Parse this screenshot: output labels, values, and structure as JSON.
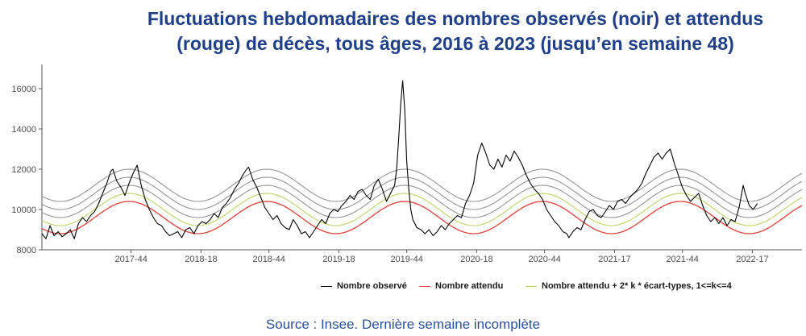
{
  "title": {
    "line1": "Fluctuations hebdomadaires des nombres observés (noir) et attendus",
    "line2": "(rouge) de décès, tous âges, 2016 à 2023 (jusqu’en semaine 48)"
  },
  "source": "Source : Insee. Dernière semaine incomplète",
  "colors": {
    "title": "#1f3f87",
    "observed": "#000000",
    "expected": "#e0413a",
    "band_first": "#b5d25a",
    "bands": "#8c8c8c",
    "source": "#2b4f9a"
  },
  "chart_data": {
    "type": "line",
    "title": "Fluctuations hebdomadaires des nombres observés (noir) et attendus (rouge) de décès, tous âges, 2016 à 2023 (jusqu’en semaine 48)",
    "xlabel": "",
    "ylabel": "",
    "ylim": [
      8000,
      16800
    ],
    "yticks": [
      8000,
      10000,
      12000,
      14000,
      16000
    ],
    "xticks": [
      "2017-44",
      "2018-18",
      "2018-44",
      "2019-18",
      "2019-44",
      "2020-18",
      "2020-44",
      "2021-17",
      "2021-44",
      "2022-17"
    ],
    "legend_position": "bottom",
    "grid": false,
    "x": [
      0,
      2,
      4,
      6,
      8,
      10,
      12,
      14,
      16,
      18,
      20,
      22,
      24,
      26,
      28,
      30,
      32,
      34,
      36,
      38,
      40,
      42,
      44,
      46,
      48,
      50,
      52,
      54,
      56,
      58,
      60,
      62,
      64,
      66,
      68,
      70,
      72,
      74,
      76,
      78,
      80,
      82,
      84,
      86,
      88,
      90,
      92,
      94,
      96,
      98,
      100,
      102,
      104,
      106,
      108,
      110,
      112,
      114,
      116,
      118,
      120,
      122,
      124,
      126,
      128,
      130,
      132,
      134,
      136,
      138,
      140,
      142,
      144,
      146,
      148,
      150,
      152,
      154,
      156,
      158,
      160,
      162,
      164,
      166,
      168,
      170,
      172,
      174,
      176,
      178,
      180,
      182,
      184,
      186,
      188,
      190,
      192,
      194,
      196,
      198,
      200,
      202,
      204,
      206,
      208,
      210,
      212,
      214,
      216,
      218,
      220,
      222,
      224,
      226,
      228,
      230,
      232,
      234,
      236,
      238,
      240,
      242,
      244,
      246,
      248,
      250,
      252,
      254,
      256,
      258,
      260,
      262,
      264,
      266,
      268,
      270,
      272,
      274,
      276,
      278,
      280,
      282,
      284,
      286,
      288,
      290,
      292,
      294,
      296,
      298,
      300,
      302,
      304,
      306,
      308,
      310,
      312,
      314,
      316,
      318,
      320,
      322,
      324,
      326,
      328,
      330,
      332,
      334,
      336,
      338,
      340,
      342,
      344,
      346,
      348,
      350,
      352,
      354,
      356,
      358,
      360,
      362,
      364,
      366,
      368,
      370,
      372,
      374,
      376,
      378,
      380,
      382,
      384,
      386,
      388,
      390,
      392,
      394,
      396,
      398,
      400,
      402,
      404,
      406,
      408,
      410,
      412,
      414,
      416,
      418,
      420,
      422,
      424,
      426,
      428,
      430,
      432,
      434,
      436,
      438,
      440,
      442,
      444,
      446,
      448,
      450,
      452,
      454,
      456,
      458,
      460,
      462,
      464,
      466,
      468,
      470,
      472,
      474,
      476,
      478,
      480,
      482,
      484,
      486,
      488,
      490,
      492,
      494,
      496,
      498,
      500,
      502,
      504,
      506,
      508,
      510,
      512,
      514,
      516,
      518,
      520,
      522,
      524,
      526,
      528,
      530,
      532,
      534,
      536,
      538,
      540,
      542,
      544,
      546,
      548,
      550,
      552,
      554,
      556,
      558,
      560,
      562,
      564,
      566,
      568,
      570,
      572,
      574,
      576,
      578,
      580,
      582,
      584,
      586,
      588,
      590,
      592,
      594,
      596,
      598,
      600,
      602,
      604,
      606,
      608,
      610,
      612,
      614,
      616,
      618,
      620,
      622,
      624,
      626,
      628,
      630,
      632,
      634,
      636,
      638,
      640,
      642,
      644,
      646,
      648,
      650,
      652,
      654,
      656,
      658,
      660,
      662,
      664,
      666,
      668,
      670,
      672,
      674,
      676,
      678,
      680,
      682,
      684,
      686,
      688,
      690,
      692,
      694,
      696,
      698,
      700,
      702,
      704,
      706,
      708,
      710,
      712,
      714,
      716,
      718,
      720,
      722,
      724,
      726,
      728,
      730,
      732,
      734,
      736,
      738,
      740,
      742,
      744,
      746,
      748,
      750,
      752,
      754,
      756,
      758,
      760,
      762,
      764,
      766,
      768,
      770,
      772,
      774,
      776,
      778,
      780,
      782,
      784,
      786,
      788,
      790,
      792,
      794,
      796,
      798,
      800,
      802,
      804,
      806,
      808,
      810,
      812,
      814,
      816,
      818,
      820,
      822,
      824,
      826,
      828,
      830,
      832,
      834,
      836,
      838,
      840,
      842,
      844,
      846,
      848,
      850,
      852,
      854,
      856,
      858,
      860,
      862,
      864,
      866,
      868,
      870,
      872,
      874,
      876,
      878,
      880,
      882,
      884,
      886,
      888,
      890,
      892,
      894,
      896,
      898,
      900,
      902,
      904,
      906,
      908,
      910,
      912,
      914,
      916,
      918,
      920,
      922,
      924,
      926,
      928,
      930,
      932,
      934,
      936,
      938
    ],
    "series": [
      {
        "name": "Nombre observé",
        "color": "#000000",
        "points": [
          [
            0,
            8800
          ],
          [
            4,
            8550
          ],
          [
            8,
            9200
          ],
          [
            12,
            8700
          ],
          [
            16,
            8900
          ],
          [
            20,
            8650
          ],
          [
            24,
            8800
          ],
          [
            28,
            9000
          ],
          [
            32,
            8550
          ],
          [
            36,
            9300
          ],
          [
            40,
            9600
          ],
          [
            44,
            9400
          ],
          [
            48,
            9700
          ],
          [
            52,
            9900
          ],
          [
            56,
            10300
          ],
          [
            60,
            10800
          ],
          [
            64,
            11300
          ],
          [
            68,
            11900
          ],
          [
            70,
            12000
          ],
          [
            74,
            11400
          ],
          [
            78,
            11100
          ],
          [
            82,
            10700
          ],
          [
            86,
            11300
          ],
          [
            90,
            11800
          ],
          [
            94,
            12200
          ],
          [
            98,
            11200
          ],
          [
            102,
            10500
          ],
          [
            106,
            10000
          ],
          [
            110,
            9600
          ],
          [
            114,
            9300
          ],
          [
            118,
            9200
          ],
          [
            122,
            8900
          ],
          [
            126,
            8700
          ],
          [
            130,
            8800
          ],
          [
            134,
            8900
          ],
          [
            138,
            8600
          ],
          [
            142,
            9000
          ],
          [
            146,
            9100
          ],
          [
            150,
            8800
          ],
          [
            154,
            9200
          ],
          [
            158,
            9400
          ],
          [
            162,
            9300
          ],
          [
            166,
            9500
          ],
          [
            170,
            9800
          ],
          [
            174,
            9600
          ],
          [
            178,
            10100
          ],
          [
            182,
            10300
          ],
          [
            186,
            10600
          ],
          [
            190,
            11000
          ],
          [
            194,
            11300
          ],
          [
            198,
            11700
          ],
          [
            202,
            12000
          ],
          [
            204,
            12100
          ],
          [
            208,
            11500
          ],
          [
            212,
            11100
          ],
          [
            216,
            10600
          ],
          [
            220,
            10100
          ],
          [
            224,
            9800
          ],
          [
            228,
            9500
          ],
          [
            232,
            9700
          ],
          [
            236,
            9300
          ],
          [
            240,
            9100
          ],
          [
            244,
            9000
          ],
          [
            248,
            9500
          ],
          [
            252,
            9200
          ],
          [
            256,
            8800
          ],
          [
            260,
            8900
          ],
          [
            264,
            8600
          ],
          [
            268,
            8900
          ],
          [
            272,
            9200
          ],
          [
            276,
            9500
          ],
          [
            280,
            9300
          ],
          [
            284,
            9800
          ],
          [
            288,
            10000
          ],
          [
            292,
            9900
          ],
          [
            296,
            10200
          ],
          [
            300,
            10400
          ],
          [
            304,
            10700
          ],
          [
            308,
            10500
          ],
          [
            312,
            10900
          ],
          [
            316,
            11000
          ],
          [
            320,
            10700
          ],
          [
            324,
            10500
          ],
          [
            328,
            11200
          ],
          [
            332,
            11500
          ],
          [
            336,
            11000
          ],
          [
            340,
            10400
          ],
          [
            344,
            10800
          ],
          [
            348,
            11200
          ],
          [
            350,
            12000
          ],
          [
            352,
            13500
          ],
          [
            354,
            15200
          ],
          [
            356,
            16400
          ],
          [
            358,
            15000
          ],
          [
            360,
            12400
          ],
          [
            362,
            11000
          ],
          [
            364,
            10000
          ],
          [
            366,
            9500
          ],
          [
            370,
            9100
          ],
          [
            374,
            9000
          ],
          [
            378,
            8800
          ],
          [
            382,
            9000
          ],
          [
            386,
            8700
          ],
          [
            390,
            8900
          ],
          [
            394,
            9200
          ],
          [
            398,
            9000
          ],
          [
            402,
            9300
          ],
          [
            406,
            9500
          ],
          [
            410,
            9700
          ],
          [
            414,
            9600
          ],
          [
            418,
            10300
          ],
          [
            422,
            10700
          ],
          [
            426,
            11300
          ],
          [
            430,
            12700
          ],
          [
            434,
            13300
          ],
          [
            438,
            12800
          ],
          [
            442,
            12200
          ],
          [
            446,
            12000
          ],
          [
            450,
            12500
          ],
          [
            454,
            12100
          ],
          [
            458,
            12700
          ],
          [
            462,
            12400
          ],
          [
            466,
            12900
          ],
          [
            470,
            12600
          ],
          [
            474,
            12200
          ],
          [
            478,
            11700
          ],
          [
            482,
            11300
          ],
          [
            486,
            11000
          ],
          [
            490,
            10800
          ],
          [
            494,
            10500
          ],
          [
            498,
            10000
          ],
          [
            502,
            9700
          ],
          [
            506,
            9400
          ],
          [
            510,
            9200
          ],
          [
            514,
            8900
          ],
          [
            518,
            8800
          ],
          [
            520,
            8600
          ],
          [
            524,
            8900
          ],
          [
            528,
            9100
          ],
          [
            532,
            9000
          ],
          [
            536,
            9500
          ],
          [
            540,
            9900
          ],
          [
            544,
            10000
          ],
          [
            548,
            9700
          ],
          [
            552,
            9600
          ],
          [
            556,
            9900
          ],
          [
            560,
            10200
          ],
          [
            564,
            10000
          ],
          [
            568,
            10400
          ],
          [
            572,
            10500
          ],
          [
            576,
            10300
          ],
          [
            580,
            10600
          ],
          [
            584,
            10800
          ],
          [
            588,
            11000
          ],
          [
            592,
            11300
          ],
          [
            596,
            11800
          ],
          [
            600,
            12200
          ],
          [
            604,
            12600
          ],
          [
            608,
            12800
          ],
          [
            612,
            12500
          ],
          [
            616,
            12800
          ],
          [
            620,
            13000
          ],
          [
            624,
            12300
          ],
          [
            628,
            11700
          ],
          [
            632,
            11100
          ],
          [
            636,
            10700
          ],
          [
            640,
            10400
          ],
          [
            644,
            10600
          ],
          [
            648,
            10800
          ],
          [
            652,
            10200
          ],
          [
            656,
            9700
          ],
          [
            660,
            9400
          ],
          [
            664,
            9600
          ],
          [
            668,
            9300
          ],
          [
            672,
            9600
          ],
          [
            676,
            9200
          ],
          [
            680,
            9500
          ],
          [
            684,
            9400
          ],
          [
            688,
            10100
          ],
          [
            692,
            11200
          ],
          [
            694,
            10800
          ],
          [
            698,
            10200
          ],
          [
            702,
            10000
          ],
          [
            706,
            10300
          ]
        ]
      },
      {
        "name": "Nombre attendu",
        "color": "#e0413a",
        "baseline": 9600,
        "amplitude": 800,
        "peak_x": [
          86,
          222,
          358,
          494,
          630
        ],
        "period": 136
      }
    ],
    "bands": [
      {
        "k": 1,
        "offset": 400,
        "color": "#b5d25a"
      },
      {
        "k": 2,
        "offset": 800,
        "color": "#8c8c8c"
      },
      {
        "k": 3,
        "offset": 1200,
        "color": "#8c8c8c"
      },
      {
        "k": 4,
        "offset": 1600,
        "color": "#8c8c8c"
      }
    ]
  },
  "legend": {
    "observed": "Nombre observé",
    "expected": "Nombre attendu",
    "band": "Nombre attendu + 2* k * écart-types, 1<=k<=4"
  }
}
